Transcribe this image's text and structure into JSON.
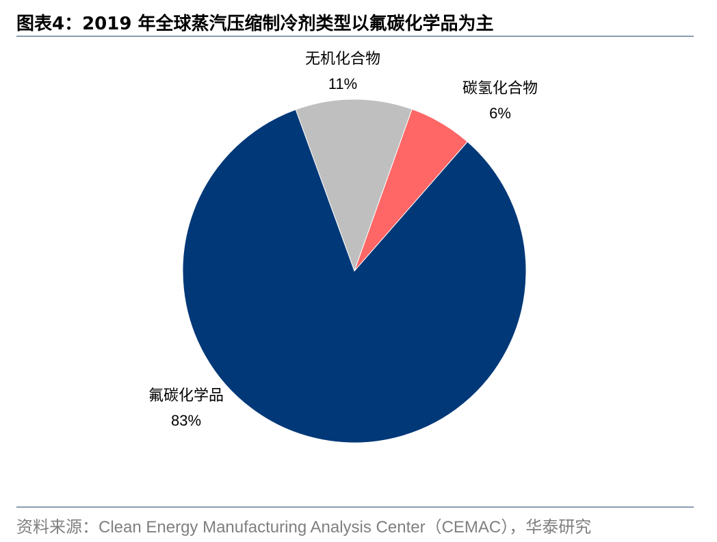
{
  "header": {
    "figure_label": "图表4：",
    "title": "2019 年全球蒸汽压缩制冷剂类型以氟碳化学品为主"
  },
  "chart_data": {
    "type": "pie",
    "title": "2019 年全球蒸汽压缩制冷剂类型以氟碳化学品为主",
    "slices": [
      {
        "label": "无机化合物",
        "value": 11,
        "display": "11%",
        "color": "#bfbfbf"
      },
      {
        "label": "碳氢化合物",
        "value": 6,
        "display": "6%",
        "color": "#ff6666"
      },
      {
        "label": "氟碳化学品",
        "value": 83,
        "display": "83%",
        "color": "#003878"
      }
    ],
    "start_angle_deg": -20,
    "direction": "clockwise",
    "legend": "none"
  },
  "footer": {
    "source": "资料来源：Clean Energy Manufacturing Analysis Center（CEMAC），华泰研究"
  }
}
